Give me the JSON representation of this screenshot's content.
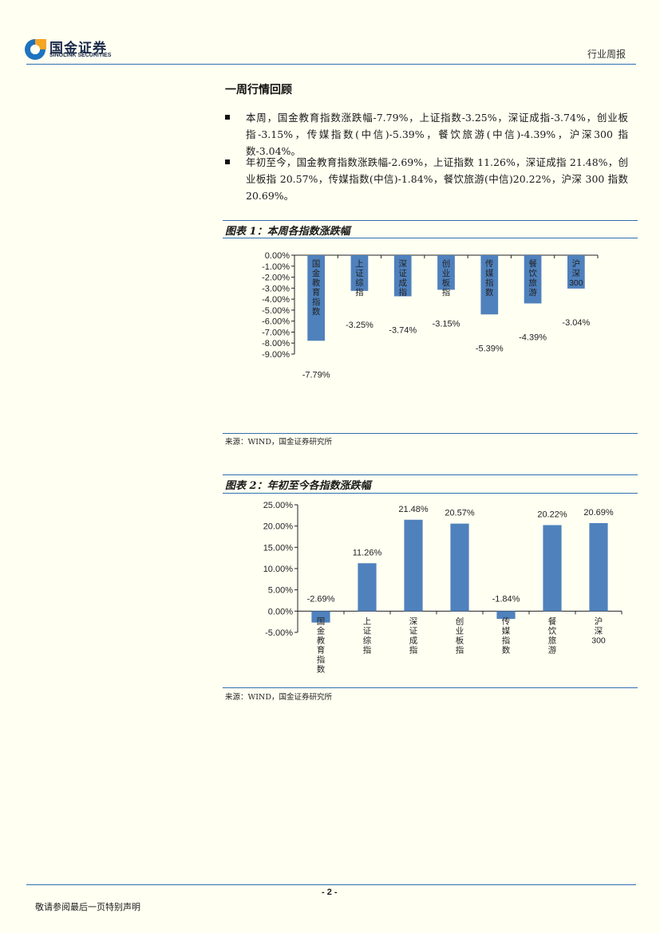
{
  "header": {
    "logo_cn": "国金证券",
    "logo_en": "SINOLINK SECURITIES",
    "report_type": "行业周报"
  },
  "section": {
    "title": "一周行情回顾",
    "bullets": [
      "本周，国金教育指数涨跌幅-7.79%，上证指数-3.25%，深证成指-3.74%，创业板指-3.15%，传媒指数(中信)-5.39%，餐饮旅游(中信)-4.39%，沪深300 指数-3.04%。",
      "年初至今，国金教育指数涨跌幅-2.69%，上证指数 11.26%，深证成指 21.48%，创业板指 20.57%，传媒指数(中信)-1.84%，餐饮旅游(中信)20.22%，沪深 300 指数 20.69%。"
    ]
  },
  "charts": [
    {
      "title": "图表 1：本周各指数涨跌幅",
      "source": "来源：WIND，国金证券研究所"
    },
    {
      "title": "图表 2：年初至今各指数涨跌幅",
      "source": "来源：WIND，国金证券研究所"
    }
  ],
  "chart_data": [
    {
      "type": "bar",
      "title": "图表 1：本周各指数涨跌幅",
      "categories": [
        "国金教育指数",
        "上证综指",
        "深证成指",
        "创业板指",
        "传媒指数",
        "餐饮旅游",
        "沪深300"
      ],
      "values": [
        -7.79,
        -3.25,
        -3.74,
        -3.15,
        -5.39,
        -4.39,
        -3.04
      ],
      "value_labels": [
        "-7.79%",
        "-3.25%",
        "-3.74%",
        "-3.15%",
        "-5.39%",
        "-4.39%",
        "-3.04%"
      ],
      "yticks": [
        "0.00%",
        "-1.00%",
        "-2.00%",
        "-3.00%",
        "-4.00%",
        "-5.00%",
        "-6.00%",
        "-7.00%",
        "-8.00%",
        "-9.00%"
      ],
      "ylim": [
        -9,
        0
      ],
      "color": "#4f81bd"
    },
    {
      "type": "bar",
      "title": "图表 2：年初至今各指数涨跌幅",
      "categories": [
        "国金教育指数",
        "上证综指",
        "深证成指",
        "创业板指",
        "传媒指数",
        "餐饮旅游",
        "沪深300"
      ],
      "values": [
        -2.69,
        11.26,
        21.48,
        20.57,
        -1.84,
        20.22,
        20.69
      ],
      "value_labels": [
        "-2.69%",
        "11.26%",
        "21.48%",
        "20.57%",
        "-1.84%",
        "20.22%",
        "20.69%"
      ],
      "yticks": [
        "25.00%",
        "20.00%",
        "15.00%",
        "10.00%",
        "5.00%",
        "0.00%",
        "-5.00%"
      ],
      "ylim": [
        -5,
        25
      ],
      "color": "#4f81bd"
    }
  ],
  "footer": {
    "page": "- 2 -",
    "note": "敬请参阅最后一页特别声明"
  }
}
